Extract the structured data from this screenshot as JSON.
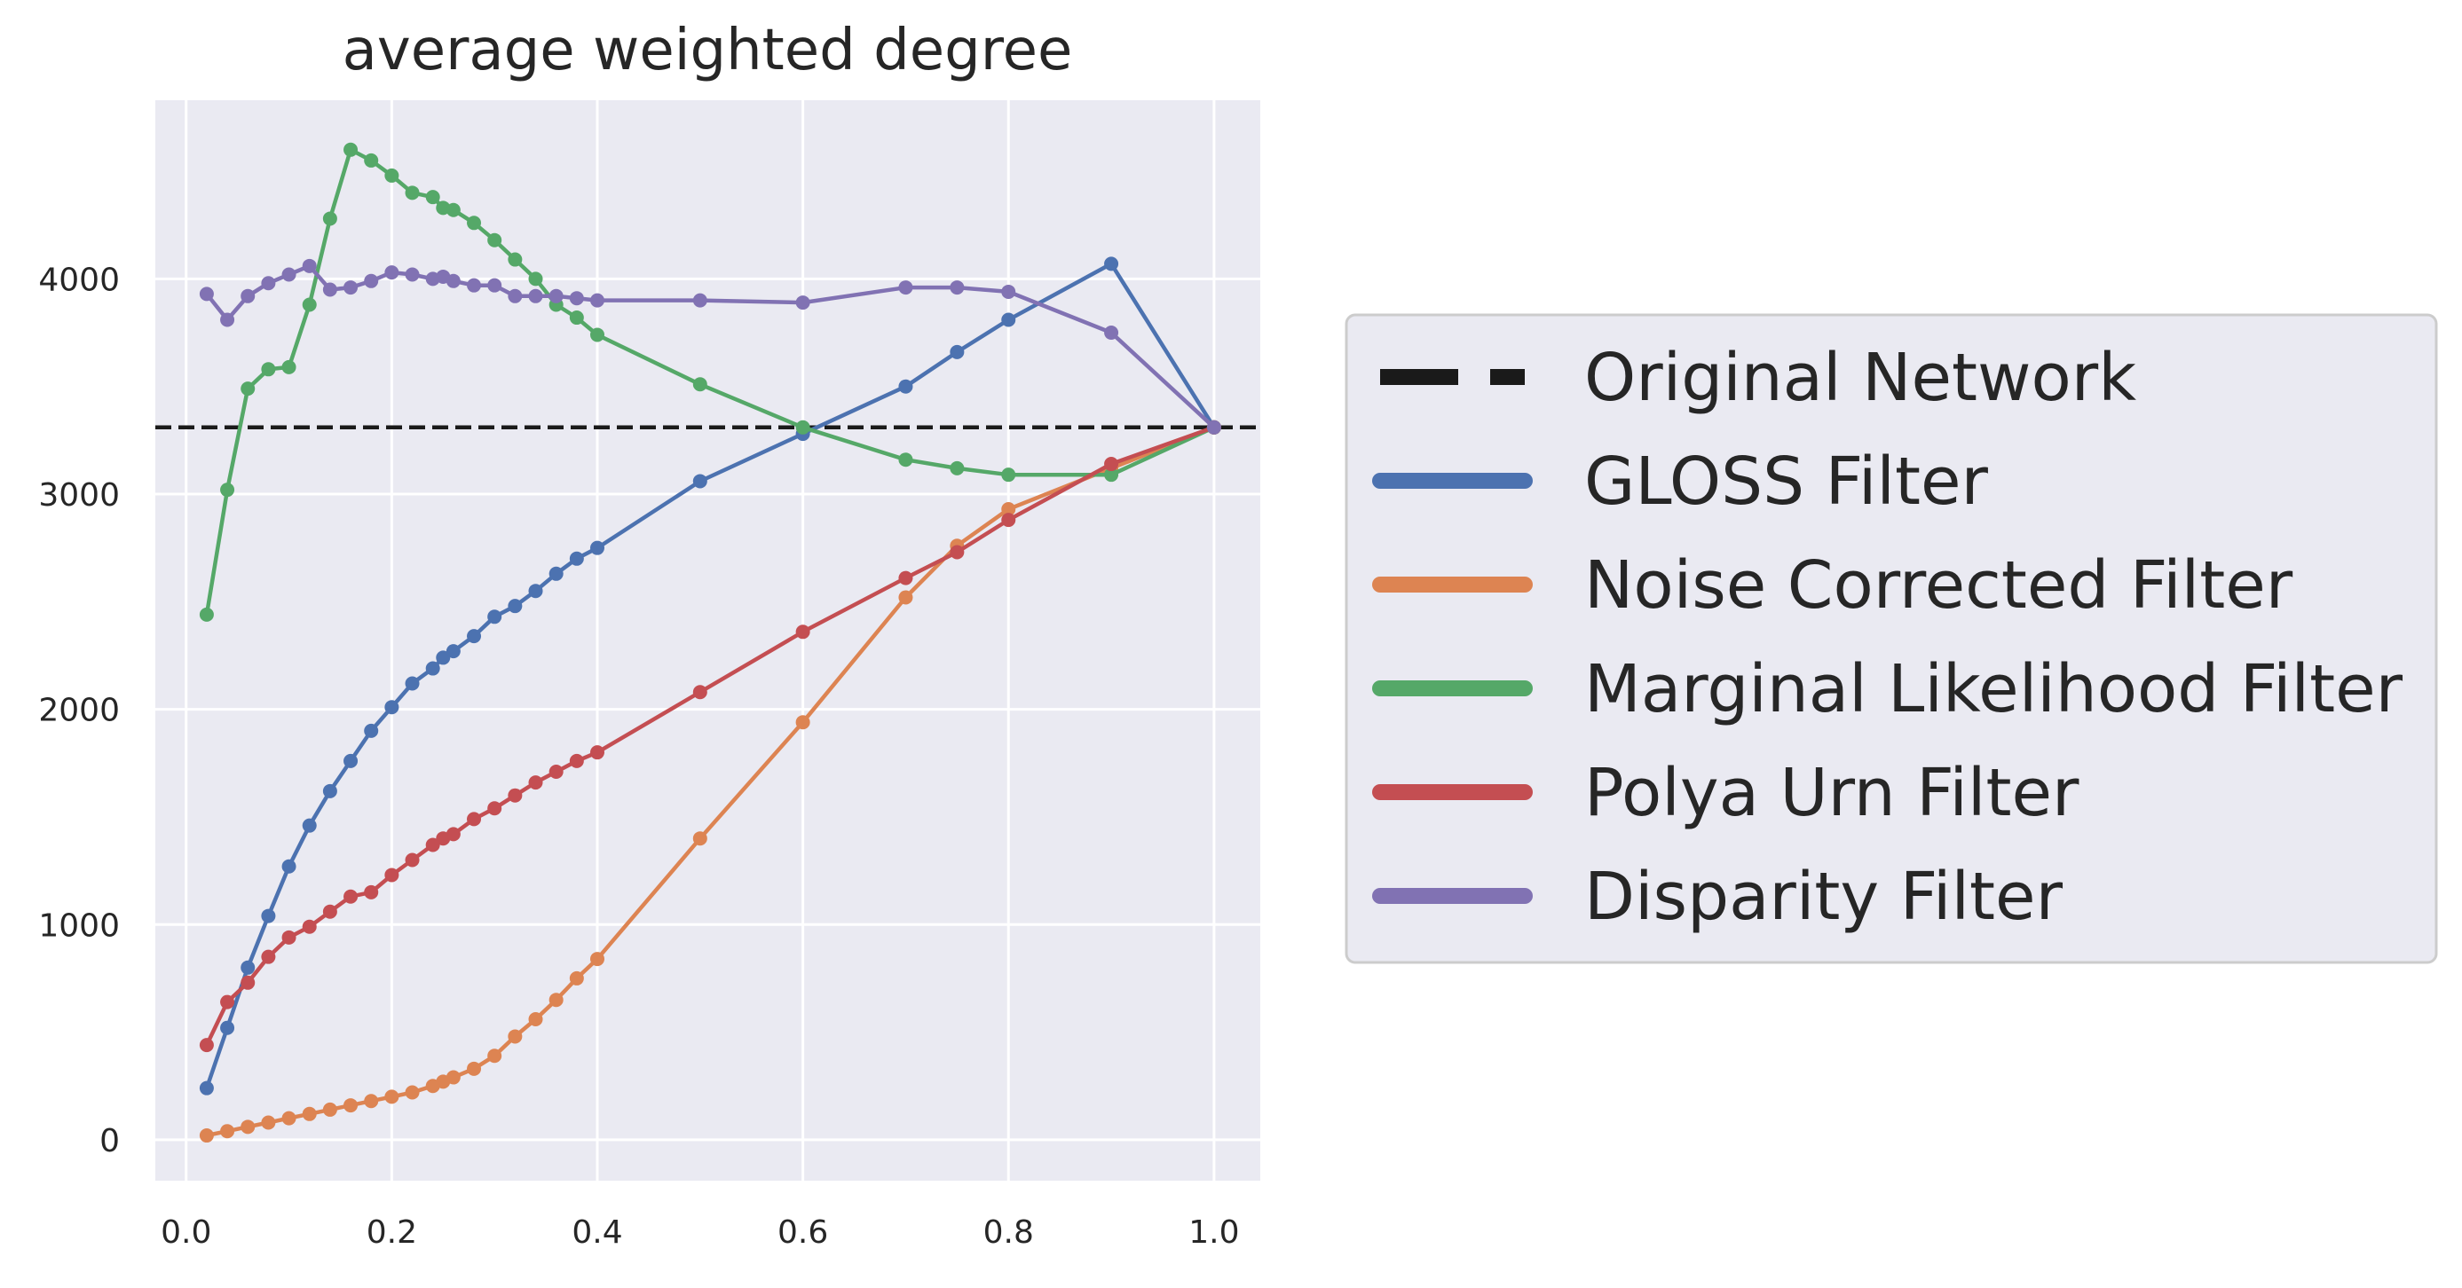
{
  "chart_data": {
    "type": "line",
    "title": "average weighted degree",
    "xlabel": "",
    "ylabel": "",
    "xlim": [
      -0.03,
      1.045
    ],
    "ylim": [
      -190,
      4830
    ],
    "x_ticks": [
      0.0,
      0.2,
      0.4,
      0.6,
      0.8,
      1.0
    ],
    "x_tick_labels": [
      "0.0",
      "0.2",
      "0.4",
      "0.6",
      "0.8",
      "1.0"
    ],
    "y_ticks": [
      0,
      1000,
      2000,
      3000,
      4000
    ],
    "y_tick_labels": [
      "0",
      "1000",
      "2000",
      "3000",
      "4000"
    ],
    "grid": true,
    "legend_position": "outside-right",
    "background_color": "#eaeaf2",
    "reference_line": {
      "name": "Original Network",
      "y": 3310,
      "color": "#1a1a1a",
      "style": "dashed"
    },
    "series": [
      {
        "name": "GLOSS Filter",
        "color": "#4c72b0",
        "x": [
          0.02,
          0.04,
          0.06,
          0.08,
          0.1,
          0.12,
          0.14,
          0.16,
          0.18,
          0.2,
          0.22,
          0.24,
          0.25,
          0.26,
          0.28,
          0.3,
          0.32,
          0.34,
          0.36,
          0.38,
          0.4,
          0.5,
          0.6,
          0.7,
          0.75,
          0.8,
          0.9,
          1.0
        ],
        "y": [
          240,
          520,
          800,
          1040,
          1270,
          1460,
          1620,
          1760,
          1900,
          2010,
          2120,
          2190,
          2240,
          2270,
          2340,
          2430,
          2480,
          2550,
          2630,
          2700,
          2750,
          3060,
          3280,
          3500,
          3660,
          3810,
          4070,
          3310
        ]
      },
      {
        "name": "Noise Corrected Filter",
        "color": "#dd8452",
        "x": [
          0.02,
          0.04,
          0.06,
          0.08,
          0.1,
          0.12,
          0.14,
          0.16,
          0.18,
          0.2,
          0.22,
          0.24,
          0.25,
          0.26,
          0.28,
          0.3,
          0.32,
          0.34,
          0.36,
          0.38,
          0.4,
          0.5,
          0.6,
          0.7,
          0.75,
          0.8,
          0.9,
          1.0
        ],
        "y": [
          20,
          40,
          60,
          80,
          100,
          120,
          140,
          160,
          180,
          200,
          220,
          250,
          270,
          290,
          330,
          390,
          480,
          560,
          650,
          750,
          840,
          1400,
          1940,
          2520,
          2760,
          2930,
          3120,
          3310
        ]
      },
      {
        "name": "Marginal Likelihood Filter",
        "color": "#55a868",
        "x": [
          0.02,
          0.04,
          0.06,
          0.08,
          0.1,
          0.12,
          0.14,
          0.16,
          0.18,
          0.2,
          0.22,
          0.24,
          0.25,
          0.26,
          0.28,
          0.3,
          0.32,
          0.34,
          0.36,
          0.38,
          0.4,
          0.5,
          0.6,
          0.7,
          0.75,
          0.8,
          0.9,
          1.0
        ],
        "y": [
          2440,
          3020,
          3490,
          3580,
          3590,
          3880,
          4280,
          4600,
          4550,
          4480,
          4400,
          4380,
          4330,
          4320,
          4260,
          4180,
          4090,
          4000,
          3880,
          3820,
          3740,
          3510,
          3310,
          3160,
          3120,
          3090,
          3090,
          3310
        ]
      },
      {
        "name": "Polya Urn Filter",
        "color": "#c44e52",
        "x": [
          0.02,
          0.04,
          0.06,
          0.08,
          0.1,
          0.12,
          0.14,
          0.16,
          0.18,
          0.2,
          0.22,
          0.24,
          0.25,
          0.26,
          0.28,
          0.3,
          0.32,
          0.34,
          0.36,
          0.38,
          0.4,
          0.5,
          0.6,
          0.7,
          0.75,
          0.8,
          0.9,
          1.0
        ],
        "y": [
          440,
          640,
          730,
          850,
          940,
          990,
          1060,
          1130,
          1150,
          1230,
          1300,
          1370,
          1400,
          1420,
          1490,
          1540,
          1600,
          1660,
          1710,
          1760,
          1800,
          2080,
          2360,
          2610,
          2730,
          2880,
          3140,
          3310
        ]
      },
      {
        "name": "Disparity Filter",
        "color": "#8172b3",
        "x": [
          0.02,
          0.04,
          0.06,
          0.08,
          0.1,
          0.12,
          0.14,
          0.16,
          0.18,
          0.2,
          0.22,
          0.24,
          0.25,
          0.26,
          0.28,
          0.3,
          0.32,
          0.34,
          0.36,
          0.38,
          0.4,
          0.5,
          0.6,
          0.7,
          0.75,
          0.8,
          0.9,
          1.0
        ],
        "y": [
          3930,
          3810,
          3920,
          3980,
          4020,
          4060,
          3950,
          3960,
          3990,
          4030,
          4020,
          4000,
          4010,
          3990,
          3970,
          3970,
          3920,
          3920,
          3920,
          3910,
          3900,
          3900,
          3890,
          3960,
          3960,
          3940,
          3750,
          3310
        ]
      }
    ]
  }
}
